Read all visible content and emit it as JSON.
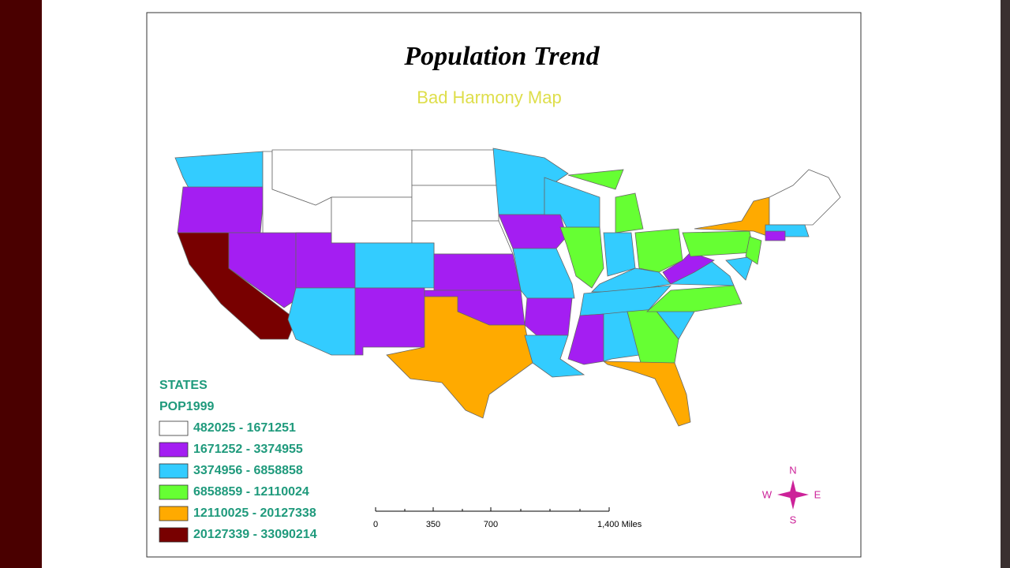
{
  "map": {
    "title": "Population Trend",
    "subtitle": "Bad Harmony Map",
    "legend": {
      "layer": "STATES",
      "field": "POP1999",
      "classes": [
        {
          "label": "482025 - 1671251",
          "color": "#ffffff"
        },
        {
          "label": "1671252 - 3374955",
          "color": "#a41ef2"
        },
        {
          "label": "3374956 - 6858858",
          "color": "#33ccff"
        },
        {
          "label": "6858859 - 12110024",
          "color": "#66ff33"
        },
        {
          "label": "12110025 - 20127338",
          "color": "#ffaa00"
        },
        {
          "label": "20127339 - 33090214",
          "color": "#780000"
        }
      ]
    },
    "scale_bar": {
      "labels": [
        "0",
        "350",
        "700",
        "1,400 Miles"
      ]
    },
    "compass": {
      "north": "N",
      "east": "E",
      "south": "S",
      "west": "W"
    }
  }
}
